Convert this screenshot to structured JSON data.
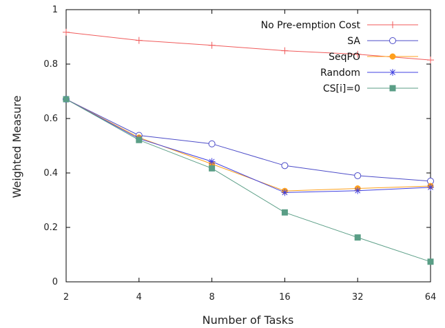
{
  "chart_data": {
    "type": "line",
    "xlabel": "Number of Tasks",
    "ylabel": "Weighted Measure",
    "x": [
      2,
      4,
      8,
      16,
      32,
      64
    ],
    "xscale": "log2",
    "xticks": [
      "2",
      "4",
      "8",
      "16",
      "32",
      "64"
    ],
    "ylim": [
      0,
      1
    ],
    "yticks": [
      "0",
      "0.2",
      "0.4",
      "0.6",
      "0.8",
      "1"
    ],
    "grid": false,
    "legend_position": "top-right",
    "series": [
      {
        "name": "No Pre-emption Cost",
        "color": "#f05a5a",
        "marker": "plus",
        "values": [
          0.917,
          0.887,
          0.869,
          0.849,
          0.836,
          0.815
        ]
      },
      {
        "name": "SA",
        "color": "#4b4bc8",
        "marker": "circle-open",
        "values": [
          0.671,
          0.538,
          0.507,
          0.427,
          0.39,
          0.37
        ]
      },
      {
        "name": "SeqPO",
        "color": "#ff9f1c",
        "marker": "circle-filled",
        "values": [
          0.671,
          0.53,
          0.433,
          0.334,
          0.343,
          0.352
        ]
      },
      {
        "name": "Random",
        "color": "#4040e0",
        "marker": "asterisk",
        "values": [
          0.671,
          0.526,
          0.442,
          0.328,
          0.335,
          0.347
        ]
      },
      {
        "name": "CS[i]=0",
        "color": "#5a9e86",
        "marker": "square-filled",
        "values": [
          0.671,
          0.521,
          0.417,
          0.255,
          0.163,
          0.074
        ]
      }
    ]
  }
}
